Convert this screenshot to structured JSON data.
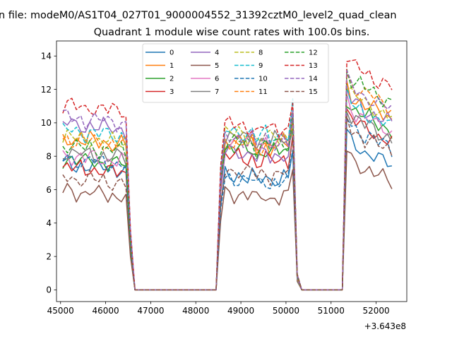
{
  "chart_data": {
    "type": "line",
    "suptitle": "n file: modeM0/AS1T04_027T01_9000004552_31392cztM0_level2_quad_clean",
    "title": "Quadrant 1 module wise count rates with 100.0s bins.",
    "xlabel": "",
    "ylabel": "",
    "x_offset_label": "+3.643e8",
    "xlim": [
      44910,
      52680
    ],
    "ylim": [
      -0.7,
      14.9
    ],
    "xticks": [
      45000,
      46000,
      47000,
      48000,
      49000,
      50000,
      51000,
      52000
    ],
    "yticks": [
      0,
      2,
      4,
      6,
      8,
      10,
      12,
      14
    ],
    "grid": false,
    "legend_position": "top-center",
    "legend_columns": 4,
    "series": [
      {
        "name": "0",
        "color": "#1f77b4",
        "dash": "solid"
      },
      {
        "name": "1",
        "color": "#ff7f0e",
        "dash": "solid"
      },
      {
        "name": "2",
        "color": "#2ca02c",
        "dash": "solid"
      },
      {
        "name": "3",
        "color": "#d62728",
        "dash": "solid"
      },
      {
        "name": "4",
        "color": "#9467bd",
        "dash": "solid"
      },
      {
        "name": "5",
        "color": "#8c564b",
        "dash": "solid"
      },
      {
        "name": "6",
        "color": "#e377c2",
        "dash": "solid"
      },
      {
        "name": "7",
        "color": "#7f7f7f",
        "dash": "solid"
      },
      {
        "name": "8",
        "color": "#bcbd22",
        "dash": "dashed"
      },
      {
        "name": "9",
        "color": "#17becf",
        "dash": "dashed"
      },
      {
        "name": "10",
        "color": "#1f77b4",
        "dash": "dashed"
      },
      {
        "name": "11",
        "color": "#ff7f0e",
        "dash": "dashed"
      },
      {
        "name": "12",
        "color": "#2ca02c",
        "dash": "dashed"
      },
      {
        "name": "13",
        "color": "#d62728",
        "dash": "dashed"
      },
      {
        "name": "14",
        "color": "#9467bd",
        "dash": "dashed"
      },
      {
        "name": "15",
        "color": "#8c564b",
        "dash": "dashed"
      }
    ],
    "segments": [
      {
        "x_start": 45050,
        "x_step": 100,
        "count": 15,
        "level": [
          7.5,
          7.6,
          7.5,
          7.4,
          7.5,
          7.3,
          7.5,
          7.4,
          7.3,
          7.4,
          7.2,
          7.3,
          7.2,
          7.3,
          7.1
        ],
        "offset": [
          0.0,
          1.5,
          0.3,
          -0.2,
          2.4,
          -1.6,
          0.5,
          0.7,
          1.6,
          2.0,
          0.3,
          1.5,
          1.1,
          3.5,
          2.8,
          -0.8
        ]
      },
      {
        "x_start": 48550,
        "x_step": 100,
        "count": 17,
        "level": [
          5.0,
          6.9,
          6.9,
          6.8,
          6.9,
          6.8,
          6.7,
          6.9,
          6.4,
          6.6,
          6.8,
          6.5,
          6.7,
          6.6,
          6.8,
          6.6,
          8.4
        ],
        "offset": [
          0.0,
          2.0,
          1.6,
          1.1,
          1.4,
          -1.1,
          2.2,
          2.3,
          2.5,
          2.6,
          -0.2,
          2.0,
          2.0,
          3.0,
          2.2,
          0.3
        ]
      },
      {
        "x_start": 51350,
        "x_step": 100,
        "count": 11,
        "level": [
          9.4,
          8.8,
          8.6,
          8.5,
          8.2,
          8.2,
          8.0,
          7.8,
          7.7,
          7.6,
          7.4
        ],
        "offset": [
          0.0,
          2.8,
          2.1,
          1.4,
          2.5,
          -1.0,
          2.0,
          1.6,
          2.9,
          2.3,
          1.0,
          3.5,
          3.8,
          4.7,
          3.3,
          0.8
        ]
      }
    ],
    "zero_ranges": [
      [
        46650,
        48450
      ],
      [
        50350,
        51250
      ]
    ],
    "transitions": [
      {
        "x": [
          46450,
          46550,
          46650
        ],
        "fraction": [
          1.0,
          0.35,
          0.0
        ]
      },
      {
        "x": [
          48450,
          48550
        ],
        "fraction": [
          0.0,
          null
        ]
      },
      {
        "x": [
          50250,
          50350
        ],
        "fraction": [
          0.05,
          0.0
        ]
      },
      {
        "x": [
          51250,
          51350
        ],
        "fraction": [
          0.0,
          null
        ]
      }
    ]
  }
}
